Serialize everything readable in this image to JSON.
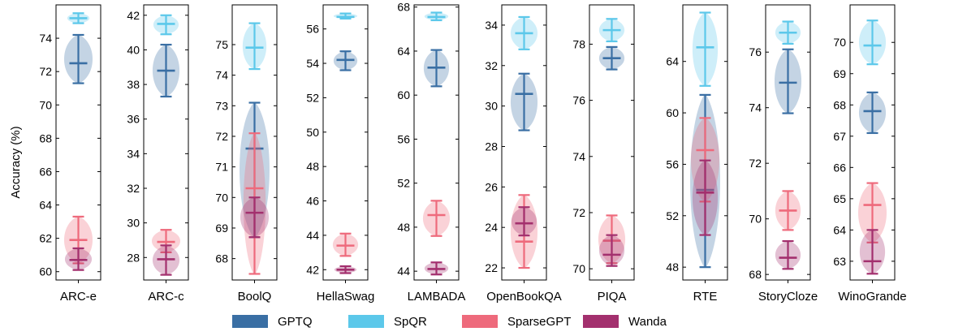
{
  "chart_data": {
    "type": "violin",
    "ylabel": "Accuracy (%)",
    "colors": {
      "GPTQ": "#3a6fa4",
      "SpQR": "#5cc8ea",
      "SparseGPT": "#ee6a7c",
      "Wanda": "#a3306e"
    },
    "legend": {
      "placement": "bottom-center",
      "entries": [
        "GPTQ",
        "SpQR",
        "SparseGPT",
        "Wanda"
      ]
    },
    "panels": [
      {
        "name": "ARC-e",
        "ylim": [
          59.5,
          76.0
        ],
        "yticks": [
          60,
          62,
          64,
          66,
          68,
          70,
          72,
          74
        ],
        "tick_labels": [
          "60",
          "62",
          "64",
          "66",
          "68",
          "70",
          "72",
          "74"
        ],
        "series": [
          {
            "name": "GPTQ",
            "min": 71.3,
            "max": 74.2,
            "median": 72.5,
            "width": 0.9
          },
          {
            "name": "SpQR",
            "min": 74.9,
            "max": 75.5,
            "median": 75.2,
            "width": 0.7
          },
          {
            "name": "SparseGPT",
            "min": 60.5,
            "max": 63.3,
            "median": 61.9,
            "width": 0.9
          },
          {
            "name": "Wanda",
            "min": 60.1,
            "max": 61.4,
            "median": 60.7,
            "width": 0.85
          }
        ]
      },
      {
        "name": "ARC-c",
        "ylim": [
          26.7,
          42.6
        ],
        "yticks": [
          28,
          30,
          32,
          34,
          36,
          38,
          40,
          42
        ],
        "tick_labels": [
          "28",
          "30",
          "32",
          "34",
          "36",
          "38",
          "40",
          "42"
        ],
        "series": [
          {
            "name": "GPTQ",
            "min": 37.3,
            "max": 40.3,
            "median": 38.8,
            "width": 0.85
          },
          {
            "name": "SpQR",
            "min": 40.9,
            "max": 42.0,
            "median": 41.5,
            "width": 0.8
          },
          {
            "name": "SparseGPT",
            "min": 28.3,
            "max": 29.6,
            "median": 28.9,
            "width": 0.9
          },
          {
            "name": "Wanda",
            "min": 27.0,
            "max": 28.7,
            "median": 27.9,
            "width": 0.85
          }
        ]
      },
      {
        "name": "BoolQ",
        "ylim": [
          67.3,
          76.3
        ],
        "yticks": [
          68,
          69,
          70,
          71,
          72,
          73,
          74,
          75
        ],
        "tick_labels": [
          "68",
          "69",
          "70",
          "71",
          "72",
          "73",
          "74",
          "75"
        ],
        "series": [
          {
            "name": "GPTQ",
            "min": 68.7,
            "max": 73.1,
            "median": 71.6,
            "width": 0.95
          },
          {
            "name": "SpQR",
            "min": 74.2,
            "max": 75.7,
            "median": 74.9,
            "width": 0.75
          },
          {
            "name": "SparseGPT",
            "min": 67.5,
            "max": 72.1,
            "median": 70.3,
            "width": 0.7
          },
          {
            "name": "Wanda",
            "min": 68.7,
            "max": 70.0,
            "median": 69.5,
            "width": 0.9
          }
        ]
      },
      {
        "name": "HellaSwag",
        "ylim": [
          41.4,
          57.4
        ],
        "yticks": [
          42,
          44,
          46,
          48,
          50,
          52,
          54,
          56
        ],
        "tick_labels": [
          "42",
          "44",
          "46",
          "48",
          "50",
          "52",
          "54",
          "56"
        ],
        "series": [
          {
            "name": "GPTQ",
            "min": 53.6,
            "max": 54.7,
            "median": 54.2,
            "width": 0.75
          },
          {
            "name": "SpQR",
            "min": 56.6,
            "max": 56.9,
            "median": 56.7,
            "width": 0.75
          },
          {
            "name": "SparseGPT",
            "min": 42.8,
            "max": 44.1,
            "median": 43.4,
            "width": 0.8
          },
          {
            "name": "Wanda",
            "min": 41.8,
            "max": 42.2,
            "median": 42.0,
            "width": 0.7
          }
        ]
      },
      {
        "name": "LAMBADA",
        "ylim": [
          43.2,
          68.2
        ],
        "yticks": [
          44,
          48,
          52,
          56,
          60,
          64,
          68
        ],
        "tick_labels": [
          "44",
          "48",
          "52",
          "56",
          "60",
          "64",
          "68"
        ],
        "series": [
          {
            "name": "GPTQ",
            "min": 60.8,
            "max": 64.1,
            "median": 62.5,
            "width": 0.8
          },
          {
            "name": "SpQR",
            "min": 66.8,
            "max": 67.5,
            "median": 67.1,
            "width": 0.75
          },
          {
            "name": "SparseGPT",
            "min": 47.2,
            "max": 50.4,
            "median": 49.1,
            "width": 0.85
          },
          {
            "name": "Wanda",
            "min": 43.7,
            "max": 44.8,
            "median": 44.2,
            "width": 0.75
          }
        ]
      },
      {
        "name": "OpenBookQA",
        "ylim": [
          21.4,
          35.0
        ],
        "yticks": [
          22,
          24,
          26,
          28,
          30,
          32,
          34
        ],
        "tick_labels": [
          "22",
          "24",
          "26",
          "28",
          "30",
          "32",
          "34"
        ],
        "series": [
          {
            "name": "GPTQ",
            "min": 28.8,
            "max": 31.6,
            "median": 30.6,
            "width": 0.85
          },
          {
            "name": "SpQR",
            "min": 32.8,
            "max": 34.4,
            "median": 33.6,
            "width": 0.85
          },
          {
            "name": "SparseGPT",
            "min": 22.0,
            "max": 25.6,
            "median": 23.3,
            "width": 0.85
          },
          {
            "name": "Wanda",
            "min": 23.6,
            "max": 25.0,
            "median": 24.2,
            "width": 0.8
          }
        ]
      },
      {
        "name": "PIQA",
        "ylim": [
          69.6,
          79.4
        ],
        "yticks": [
          70,
          72,
          74,
          76,
          78
        ],
        "tick_labels": [
          "70",
          "72",
          "74",
          "76",
          "78"
        ],
        "series": [
          {
            "name": "GPTQ",
            "min": 77.1,
            "max": 77.9,
            "median": 77.5,
            "width": 0.8
          },
          {
            "name": "SpQR",
            "min": 78.1,
            "max": 78.9,
            "median": 78.5,
            "width": 0.8
          },
          {
            "name": "SparseGPT",
            "min": 70.2,
            "max": 71.9,
            "median": 71.0,
            "width": 0.85
          },
          {
            "name": "Wanda",
            "min": 70.1,
            "max": 71.2,
            "median": 70.5,
            "width": 0.8
          }
        ]
      },
      {
        "name": "RTE",
        "ylim": [
          47.0,
          68.4
        ],
        "yticks": [
          48,
          52,
          56,
          60,
          64
        ],
        "tick_labels": [
          "48",
          "52",
          "56",
          "60",
          "64"
        ],
        "series": [
          {
            "name": "GPTQ",
            "min": 48.0,
            "max": 61.4,
            "median": 54.0,
            "width": 0.95
          },
          {
            "name": "SpQR",
            "min": 62.1,
            "max": 67.8,
            "median": 65.1,
            "width": 0.8
          },
          {
            "name": "SparseGPT",
            "min": 53.1,
            "max": 59.6,
            "median": 57.1,
            "width": 0.9
          },
          {
            "name": "Wanda",
            "min": 50.5,
            "max": 56.3,
            "median": 53.8,
            "width": 0.8
          }
        ]
      },
      {
        "name": "StoryCloze",
        "ylim": [
          67.8,
          77.7
        ],
        "yticks": [
          68,
          70,
          72,
          74,
          76
        ],
        "tick_labels": [
          "68",
          "70",
          "72",
          "74",
          "76"
        ],
        "series": [
          {
            "name": "GPTQ",
            "min": 73.8,
            "max": 76.1,
            "median": 74.9,
            "width": 0.85
          },
          {
            "name": "SpQR",
            "min": 76.3,
            "max": 77.1,
            "median": 76.7,
            "width": 0.8
          },
          {
            "name": "SparseGPT",
            "min": 69.6,
            "max": 71.0,
            "median": 70.3,
            "width": 0.8
          },
          {
            "name": "Wanda",
            "min": 68.2,
            "max": 69.2,
            "median": 68.6,
            "width": 0.8
          }
        ]
      },
      {
        "name": "WinoGrande",
        "ylim": [
          62.4,
          71.2
        ],
        "yticks": [
          63,
          64,
          65,
          66,
          67,
          68,
          69,
          70
        ],
        "tick_labels": [
          "63",
          "64",
          "65",
          "66",
          "67",
          "68",
          "69",
          "70"
        ],
        "series": [
          {
            "name": "GPTQ",
            "min": 67.1,
            "max": 68.4,
            "median": 67.8,
            "width": 0.85
          },
          {
            "name": "SpQR",
            "min": 69.3,
            "max": 70.7,
            "median": 69.9,
            "width": 0.85
          },
          {
            "name": "SparseGPT",
            "min": 63.6,
            "max": 65.5,
            "median": 64.8,
            "width": 0.9
          },
          {
            "name": "Wanda",
            "min": 62.6,
            "max": 64.0,
            "median": 63.0,
            "width": 0.8
          }
        ]
      }
    ]
  }
}
